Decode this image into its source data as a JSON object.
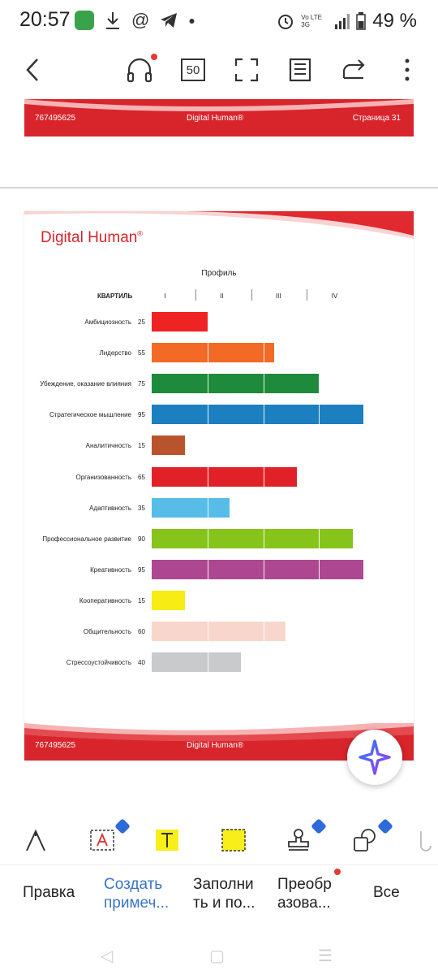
{
  "status": {
    "time": "20:57",
    "battery": "49 %",
    "network": "Vo LTE 3G"
  },
  "toolbar": {
    "page_count": "50"
  },
  "document": {
    "prev_page_footer": {
      "id": "767495625",
      "brand": "Digital Human®",
      "page": "Страница 31"
    },
    "page": {
      "brand": "Digital Human",
      "brand_mark": "®",
      "footer_id": "767495625",
      "footer_brand": "Digital Human®"
    }
  },
  "chart_data": {
    "type": "bar",
    "title": "Профиль",
    "quartile_header": "КВАРТИЛЬ",
    "quartiles": [
      "I",
      "II",
      "III",
      "IV"
    ],
    "xlim": [
      0,
      100
    ],
    "categories": [
      "Амбициозность",
      "Лидерство",
      "Убеждение, оказание влияния",
      "Стратегическое мышление",
      "Аналитичность",
      "Организованность",
      "Адаптивность",
      "Профессиональное развитие",
      "Креативность",
      "Кооперативность",
      "Общительность",
      "Стрессоустойчивость"
    ],
    "values": [
      25,
      55,
      75,
      95,
      15,
      65,
      35,
      90,
      95,
      15,
      60,
      40
    ],
    "colors": [
      "#ee2323",
      "#f26a26",
      "#1e8a3b",
      "#1b7fc0",
      "#b9532e",
      "#e02228",
      "#57bde8",
      "#86c41b",
      "#ad4790",
      "#f7ec13",
      "#f9d6cb",
      "#c8cacb"
    ]
  },
  "tools": {
    "icons": [
      "pen-icon",
      "text-box-icon",
      "highlight-text-icon",
      "area-highlight-icon",
      "stamp-icon",
      "shapes-icon"
    ]
  },
  "tabs": {
    "edit": "Правка",
    "comment": "Создать примеч...",
    "fill": "Заполни ть и по...",
    "convert": "Преобр азова...",
    "all": "Все"
  }
}
